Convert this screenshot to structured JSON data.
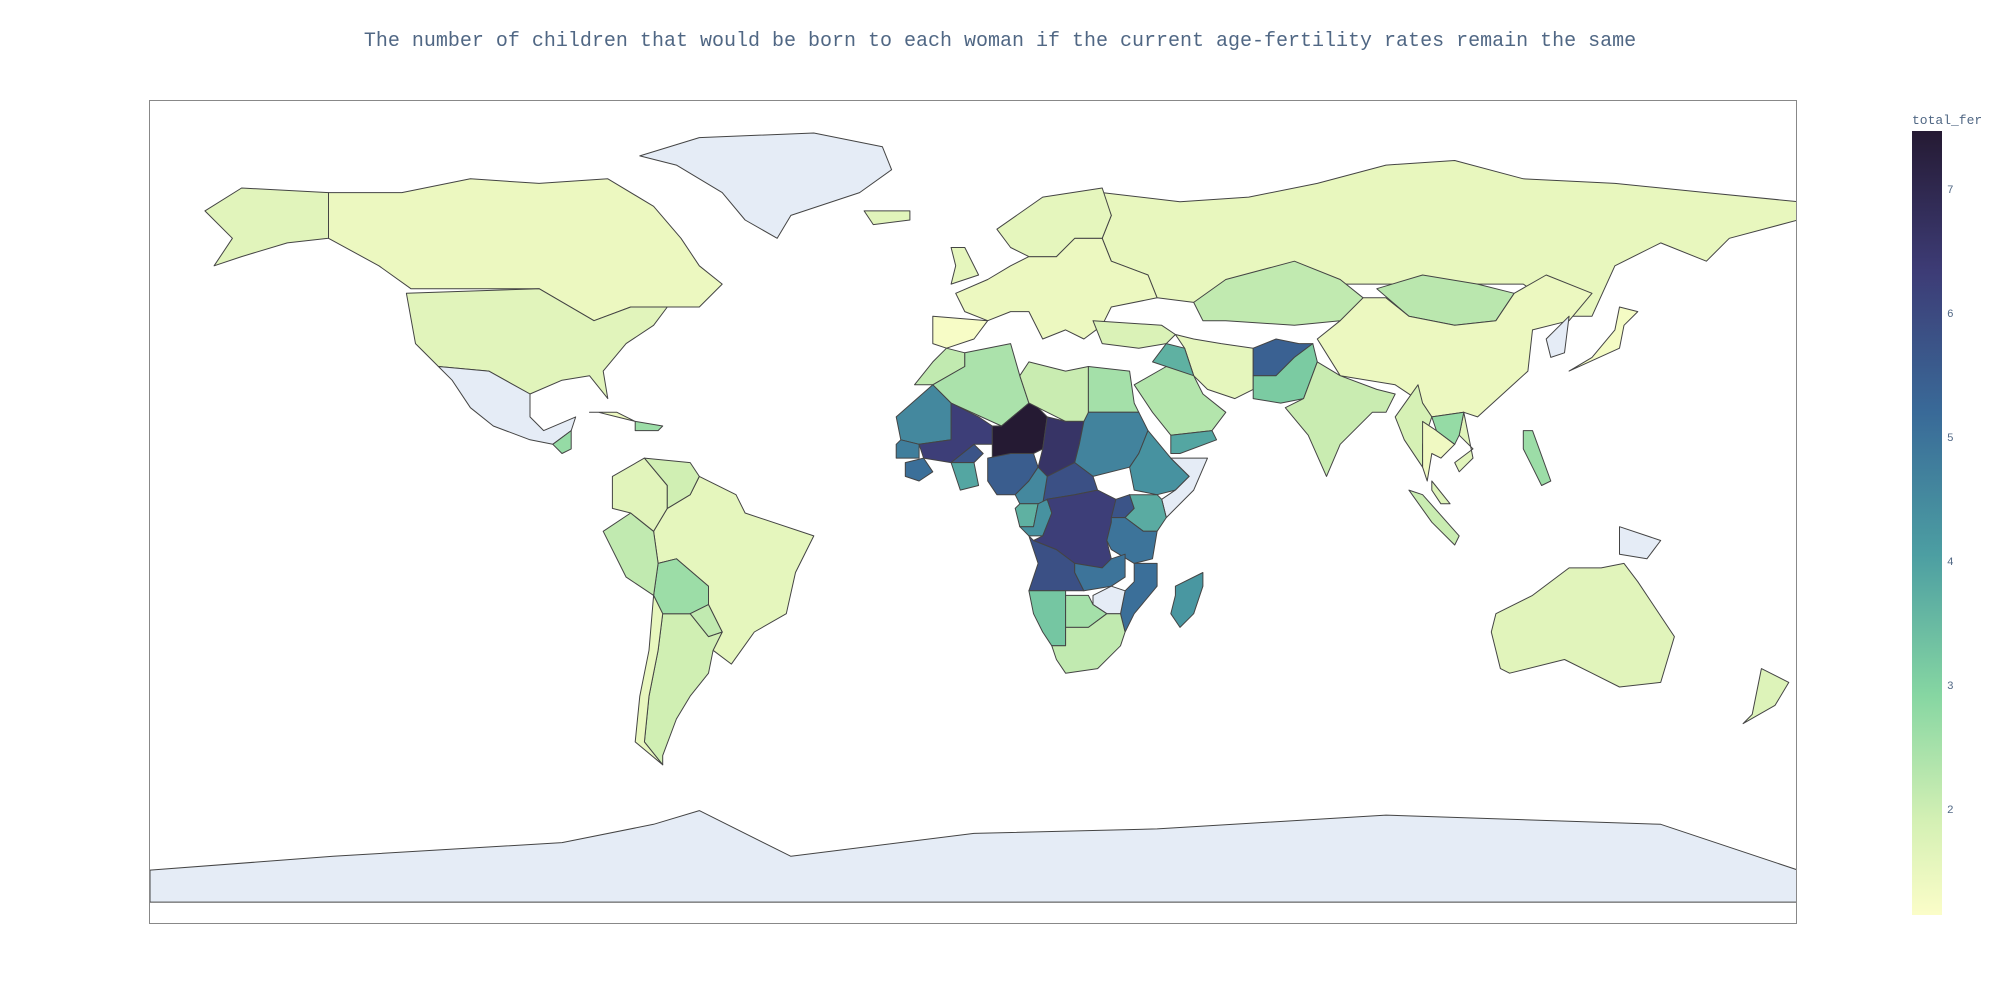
{
  "title": "The number of children that would be born to each woman if the current age-fertility rates remain the same",
  "colorbar": {
    "title": "total_fer",
    "ticks": [
      "7",
      "6",
      "5",
      "4",
      "3",
      "2"
    ],
    "range": [
      1.2,
      7.5
    ],
    "colors": [
      "#fbfdc8",
      "#d4f0b4",
      "#86d6a2",
      "#4c9ea2",
      "#396a98",
      "#3d3c76",
      "#251a33"
    ]
  },
  "colors": {
    "no_data": "#e5ecf6",
    "border": "#444444",
    "frame": "#888888",
    "title_text": "#506784"
  },
  "chart_data": {
    "type": "choropleth",
    "value_label": "total_fer",
    "projection": "equirectangular",
    "regions": [
      {
        "region": "Russia",
        "value": 1.7
      },
      {
        "region": "Canada",
        "value": 1.6
      },
      {
        "region": "United States",
        "value": 1.9
      },
      {
        "region": "Alaska (United States)",
        "value": 1.9
      },
      {
        "region": "Greenland",
        "value": null
      },
      {
        "region": "Mexico",
        "value": null
      },
      {
        "region": "Brazil",
        "value": 1.8
      },
      {
        "region": "Argentina",
        "value": 2.3
      },
      {
        "region": "Bolivia",
        "value": 3.0
      },
      {
        "region": "Peru",
        "value": 2.5
      },
      {
        "region": "Colombia",
        "value": 1.9
      },
      {
        "region": "Venezuela",
        "value": 2.3
      },
      {
        "region": "Chile",
        "value": 1.7
      },
      {
        "region": "Paraguay",
        "value": 2.5
      },
      {
        "region": "Guatemala",
        "value": 3.1
      },
      {
        "region": "Cuba",
        "value": 1.6
      },
      {
        "region": "Hispaniola",
        "value": 3.0
      },
      {
        "region": "Europe",
        "value": 1.6
      },
      {
        "region": "Spain / Portugal",
        "value": 1.3
      },
      {
        "region": "United Kingdom",
        "value": 1.8
      },
      {
        "region": "Scandinavia",
        "value": 1.8
      },
      {
        "region": "Iceland",
        "value": 1.9
      },
      {
        "region": "Turkey",
        "value": 2.1
      },
      {
        "region": "Kazakhstan",
        "value": 2.5
      },
      {
        "region": "Mongolia",
        "value": 2.6
      },
      {
        "region": "China",
        "value": 1.6
      },
      {
        "region": "Japan",
        "value": 1.4
      },
      {
        "region": "Korea",
        "value": null
      },
      {
        "region": "Iran",
        "value": 1.8
      },
      {
        "region": "Iraq",
        "value": 4.0
      },
      {
        "region": "Saudi Arabia",
        "value": 2.7
      },
      {
        "region": "Yemen",
        "value": 4.2
      },
      {
        "region": "Afghanistan",
        "value": 5.6
      },
      {
        "region": "Pakistan",
        "value": 3.5
      },
      {
        "region": "India",
        "value": 2.4
      },
      {
        "region": "Myanmar",
        "value": 2.2
      },
      {
        "region": "Thailand",
        "value": 1.5
      },
      {
        "region": "Vietnam",
        "value": 1.9
      },
      {
        "region": "Laos",
        "value": 3.1
      },
      {
        "region": "Malaysia",
        "value": 2.0
      },
      {
        "region": "Indonesia",
        "value": 2.4
      },
      {
        "region": "Philippines",
        "value": 3.0
      },
      {
        "region": "Papua New Guinea",
        "value": null
      },
      {
        "region": "Australia",
        "value": 1.9
      },
      {
        "region": "New Zealand",
        "value": 2.0
      },
      {
        "region": "Antarctica",
        "value": null
      },
      {
        "region": "Morocco",
        "value": 2.5
      },
      {
        "region": "Algeria",
        "value": 2.8
      },
      {
        "region": "Libya",
        "value": 2.4
      },
      {
        "region": "Egypt",
        "value": 2.9
      },
      {
        "region": "Mauritania",
        "value": 4.8
      },
      {
        "region": "Mali",
        "value": 6.4
      },
      {
        "region": "Niger",
        "value": 7.5
      },
      {
        "region": "Chad",
        "value": 6.7
      },
      {
        "region": "Sudan",
        "value": 4.9
      },
      {
        "region": "Ethiopia",
        "value": 4.6
      },
      {
        "region": "Somalia",
        "value": null
      },
      {
        "region": "Senegal",
        "value": 5.0
      },
      {
        "region": "Guinea",
        "value": 5.3
      },
      {
        "region": "Burkina Faso",
        "value": 5.9
      },
      {
        "region": "Ghana",
        "value": 4.2
      },
      {
        "region": "Nigeria",
        "value": 5.7
      },
      {
        "region": "Central African Republic",
        "value": 6.0
      },
      {
        "region": "Cameroon",
        "value": 4.8
      },
      {
        "region": "Gabon",
        "value": 4.0
      },
      {
        "region": "Congo",
        "value": 4.6
      },
      {
        "region": "DR Congo",
        "value": 6.4
      },
      {
        "region": "Uganda",
        "value": 5.9
      },
      {
        "region": "Kenya",
        "value": 4.1
      },
      {
        "region": "Tanzania",
        "value": 5.2
      },
      {
        "region": "Angola",
        "value": 6.0
      },
      {
        "region": "Zambia",
        "value": 5.2
      },
      {
        "region": "Mozambique",
        "value": 5.3
      },
      {
        "region": "Zimbabwe",
        "value": null
      },
      {
        "region": "Namibia",
        "value": 3.6
      },
      {
        "region": "Botswana",
        "value": 2.9
      },
      {
        "region": "South Africa",
        "value": 2.5
      },
      {
        "region": "Madagascar",
        "value": 4.5
      }
    ]
  }
}
